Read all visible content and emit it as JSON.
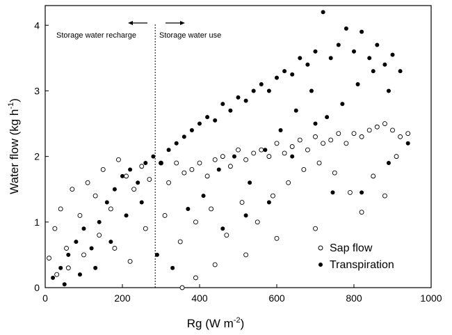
{
  "chart_data": {
    "type": "scatter",
    "title": "",
    "xlabel": {
      "base": "Rg (W m",
      "sup": "-2",
      "tail": ")"
    },
    "ylabel": {
      "base": "Water flow (kg h",
      "sup": "-1",
      "tail": ")"
    },
    "xlim": [
      0,
      1000
    ],
    "ylim": [
      0,
      4.3
    ],
    "xticks": [
      0,
      200,
      400,
      600,
      800,
      1000
    ],
    "yticks": [
      0,
      1,
      2,
      3,
      4
    ],
    "grid": false,
    "legend_placement": "bottom-right",
    "divider_x": 285,
    "annotations": {
      "left": "Storage water recharge",
      "right": "Storage water use"
    },
    "series": [
      {
        "name": "Sap flow",
        "marker": "open-circle",
        "points": [
          [
            10,
            0.45
          ],
          [
            25,
            0.9
          ],
          [
            40,
            1.2
          ],
          [
            55,
            0.6
          ],
          [
            70,
            1.5
          ],
          [
            90,
            1.1
          ],
          [
            110,
            1.6
          ],
          [
            130,
            1.4
          ],
          [
            150,
            1.8
          ],
          [
            170,
            1.2
          ],
          [
            190,
            1.95
          ],
          [
            210,
            1.7
          ],
          [
            230,
            1.5
          ],
          [
            250,
            1.85
          ],
          [
            270,
            1.65
          ],
          [
            300,
            1.9
          ],
          [
            320,
            1.6
          ],
          [
            340,
            1.9
          ],
          [
            360,
            1.75
          ],
          [
            380,
            1.8
          ],
          [
            400,
            1.9
          ],
          [
            420,
            1.7
          ],
          [
            440,
            1.95
          ],
          [
            460,
            2.0
          ],
          [
            480,
            1.85
          ],
          [
            500,
            2.1
          ],
          [
            520,
            1.95
          ],
          [
            540,
            2.05
          ],
          [
            560,
            2.1
          ],
          [
            580,
            2.0
          ],
          [
            600,
            2.2
          ],
          [
            620,
            2.05
          ],
          [
            640,
            2.15
          ],
          [
            660,
            2.25
          ],
          [
            680,
            2.1
          ],
          [
            700,
            2.3
          ],
          [
            720,
            2.2
          ],
          [
            740,
            2.25
          ],
          [
            760,
            2.35
          ],
          [
            780,
            2.2
          ],
          [
            800,
            2.35
          ],
          [
            820,
            2.3
          ],
          [
            840,
            2.4
          ],
          [
            860,
            2.45
          ],
          [
            880,
            2.5
          ],
          [
            900,
            2.4
          ],
          [
            920,
            2.3
          ],
          [
            940,
            2.35
          ],
          [
            30,
            0.2
          ],
          [
            60,
            0.3
          ],
          [
            100,
            0.5
          ],
          [
            140,
            0.8
          ],
          [
            180,
            0.6
          ],
          [
            220,
            0.4
          ],
          [
            260,
            0.9
          ],
          [
            310,
            1.1
          ],
          [
            350,
            0.7
          ],
          [
            390,
            1.0
          ],
          [
            430,
            1.2
          ],
          [
            470,
            0.8
          ],
          [
            510,
            1.3
          ],
          [
            550,
            1.0
          ],
          [
            590,
            1.4
          ],
          [
            630,
            1.6
          ],
          [
            670,
            1.8
          ],
          [
            710,
            1.9
          ],
          [
            750,
            1.75
          ],
          [
            790,
            1.45
          ],
          [
            820,
            1.15
          ],
          [
            850,
            1.7
          ],
          [
            880,
            1.4
          ],
          [
            910,
            2.0
          ],
          [
            355,
            0.0
          ],
          [
            390,
            0.15
          ],
          [
            440,
            0.35
          ],
          [
            520,
            0.5
          ],
          [
            600,
            0.75
          ],
          [
            700,
            0.9
          ]
        ]
      },
      {
        "name": "Transpiration",
        "marker": "filled-circle",
        "points": [
          [
            20,
            0.15
          ],
          [
            40,
            0.3
          ],
          [
            60,
            0.5
          ],
          [
            80,
            0.7
          ],
          [
            100,
            0.9
          ],
          [
            120,
            0.6
          ],
          [
            140,
            1.0
          ],
          [
            160,
            1.3
          ],
          [
            180,
            1.5
          ],
          [
            200,
            1.7
          ],
          [
            220,
            1.8
          ],
          [
            240,
            1.6
          ],
          [
            260,
            1.9
          ],
          [
            280,
            2.0
          ],
          [
            300,
            1.9
          ],
          [
            320,
            2.1
          ],
          [
            340,
            2.2
          ],
          [
            360,
            2.3
          ],
          [
            380,
            2.4
          ],
          [
            400,
            2.5
          ],
          [
            420,
            2.6
          ],
          [
            440,
            2.55
          ],
          [
            460,
            2.8
          ],
          [
            480,
            2.7
          ],
          [
            500,
            2.9
          ],
          [
            520,
            2.85
          ],
          [
            540,
            3.0
          ],
          [
            560,
            3.1
          ],
          [
            580,
            3.0
          ],
          [
            600,
            3.2
          ],
          [
            620,
            3.3
          ],
          [
            640,
            3.25
          ],
          [
            660,
            3.5
          ],
          [
            680,
            3.4
          ],
          [
            700,
            3.6
          ],
          [
            720,
            4.2
          ],
          [
            740,
            3.5
          ],
          [
            760,
            3.7
          ],
          [
            780,
            3.95
          ],
          [
            800,
            3.6
          ],
          [
            820,
            3.9
          ],
          [
            840,
            3.5
          ],
          [
            860,
            3.7
          ],
          [
            880,
            3.4
          ],
          [
            900,
            3.55
          ],
          [
            920,
            3.3
          ],
          [
            940,
            2.2
          ],
          [
            50,
            0.05
          ],
          [
            90,
            0.2
          ],
          [
            130,
            0.3
          ],
          [
            170,
            0.7
          ],
          [
            210,
            1.1
          ],
          [
            250,
            1.3
          ],
          [
            290,
            0.5
          ],
          [
            330,
            0.3
          ],
          [
            370,
            1.2
          ],
          [
            410,
            1.4
          ],
          [
            450,
            1.8
          ],
          [
            490,
            2.0
          ],
          [
            530,
            1.6
          ],
          [
            570,
            2.1
          ],
          [
            610,
            2.4
          ],
          [
            650,
            2.7
          ],
          [
            690,
            3.0
          ],
          [
            730,
            2.6
          ],
          [
            770,
            2.8
          ],
          [
            810,
            3.1
          ],
          [
            850,
            3.3
          ],
          [
            890,
            3.0
          ],
          [
            745,
            1.45
          ],
          [
            820,
            1.45
          ],
          [
            890,
            1.9
          ],
          [
            700,
            2.5
          ],
          [
            640,
            2.0
          ],
          [
            580,
            1.3
          ],
          [
            520,
            1.1
          ],
          [
            460,
            0.9
          ]
        ]
      }
    ]
  }
}
